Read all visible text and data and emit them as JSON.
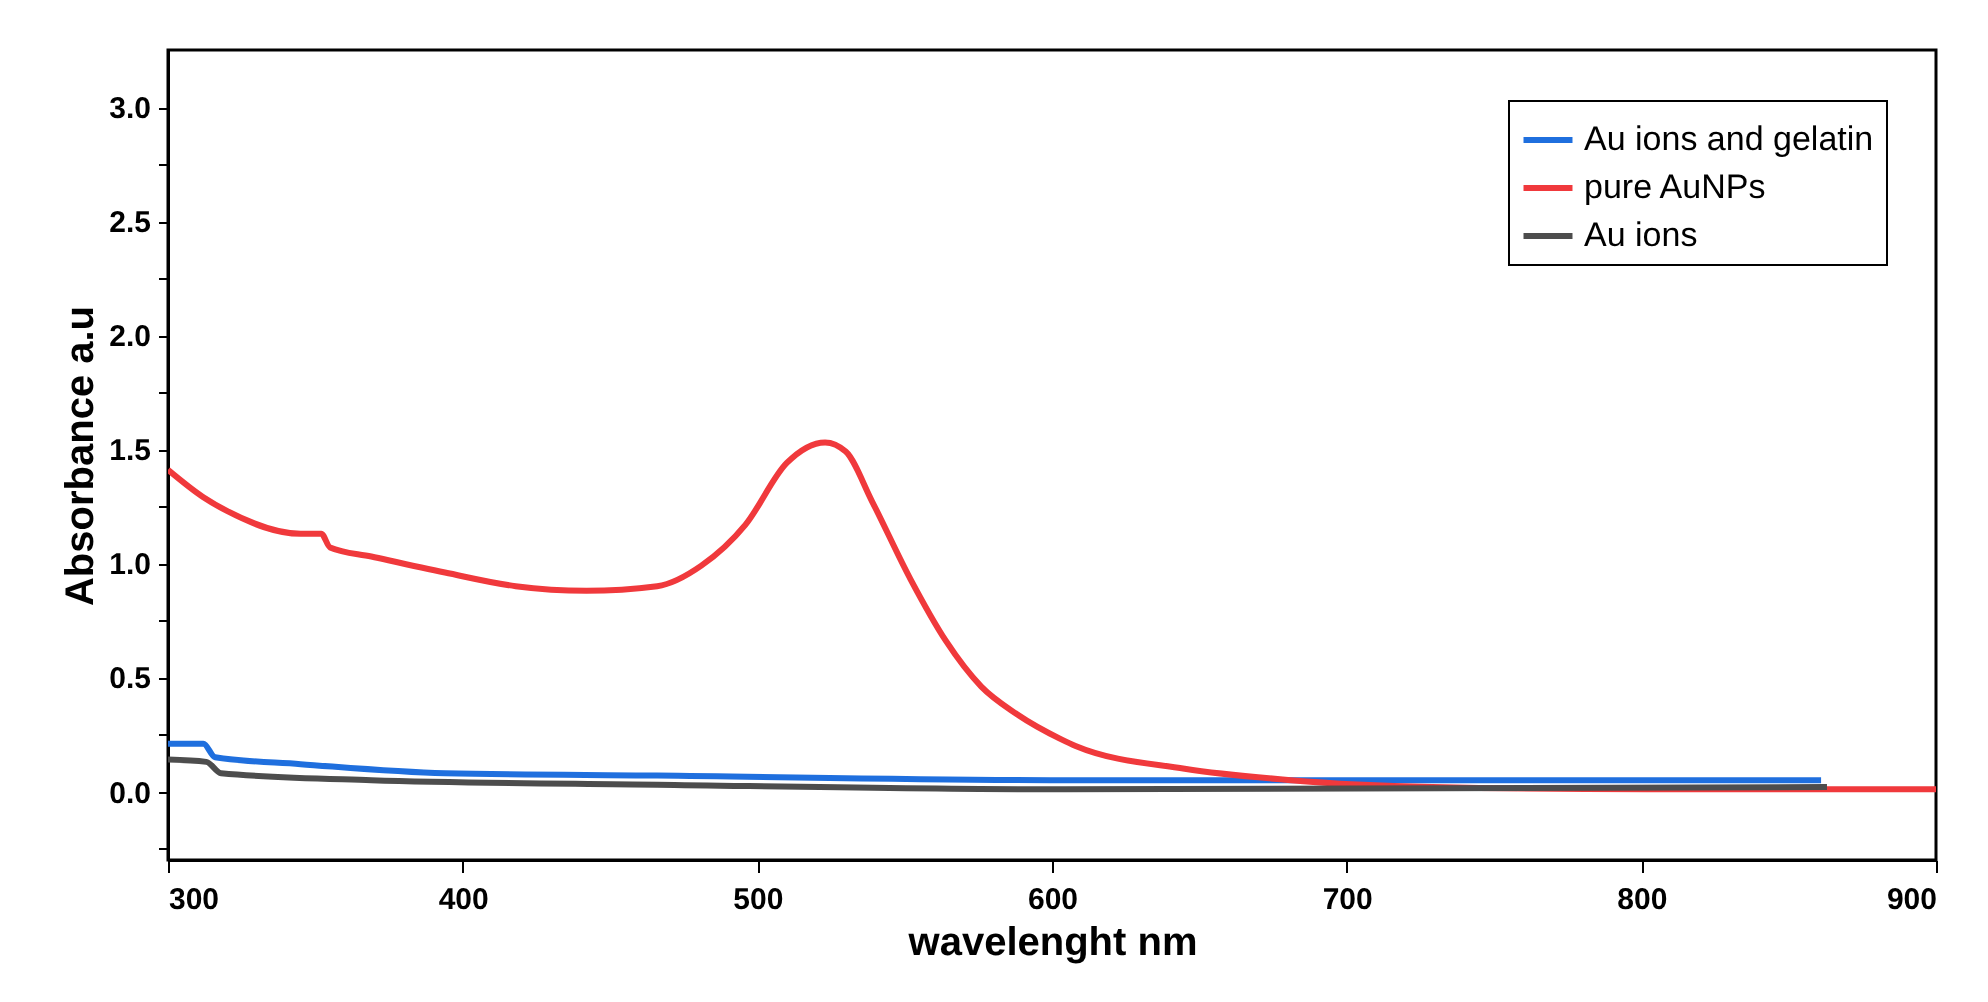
{
  "chart_data": {
    "type": "line",
    "xlabel": "wavelenght nm",
    "ylabel": "Absorbance a.u",
    "xlim": [
      300,
      900
    ],
    "xticks": [
      300,
      400,
      500,
      600,
      700,
      800,
      900
    ],
    "ylim": [
      -0.3,
      3.25
    ],
    "yticks": [
      {
        "value": -0.25,
        "label": null
      },
      {
        "value": 0,
        "label": "0.0"
      },
      {
        "value": 0.25,
        "label": null
      },
      0.5,
      {
        "value": 0.75,
        "label": null
      },
      {
        "value": 1,
        "label": "1.0"
      },
      {
        "value": 1.25,
        "label": null
      },
      1.5,
      {
        "value": 1.75,
        "label": null
      },
      {
        "value": 2,
        "label": "2.0"
      },
      {
        "value": 2.25,
        "label": null
      },
      2.5,
      {
        "value": 2.75,
        "label": null
      },
      {
        "value": 3,
        "label": "3.0"
      }
    ],
    "grid": false,
    "legend": "top right",
    "marker": "none",
    "line_style": "solid",
    "series": [
      {
        "name": "Au ions and gelatin",
        "color": "#1f6fde",
        "x": [
          300,
          312,
          316,
          345,
          394,
          466,
          603,
          861
        ],
        "values": [
          0.21,
          0.21,
          0.15,
          0.12,
          0.08,
          0.07,
          0.05,
          0.05
        ]
      },
      {
        "name": "pure AuNPs",
        "color": "#f0393c",
        "x": [
          300,
          312,
          320,
          345,
          352,
          355,
          369,
          394,
          418,
          442,
          466,
          481,
          496,
          510,
          523,
          530,
          539,
          552,
          564,
          576,
          588,
          603,
          608,
          645,
          681,
          729,
          802,
          900
        ],
        "values": [
          1.41,
          1.29,
          1.23,
          1.13,
          1.13,
          1.07,
          1.03,
          0.96,
          0.9,
          0.88,
          0.9,
          0.99,
          1.17,
          1.44,
          1.53,
          1.49,
          1.27,
          0.93,
          0.66,
          0.46,
          0.34,
          0.23,
          0.2,
          0.1,
          0.05,
          0.02,
          0.01,
          0.01
        ]
      },
      {
        "name": "Au ions",
        "color": "#4d4d4d",
        "x": [
          300,
          313,
          318,
          369,
          466,
          603,
          863
        ],
        "values": [
          0.14,
          0.13,
          0.08,
          0.05,
          0.03,
          0.01,
          0.02
        ]
      }
    ]
  }
}
